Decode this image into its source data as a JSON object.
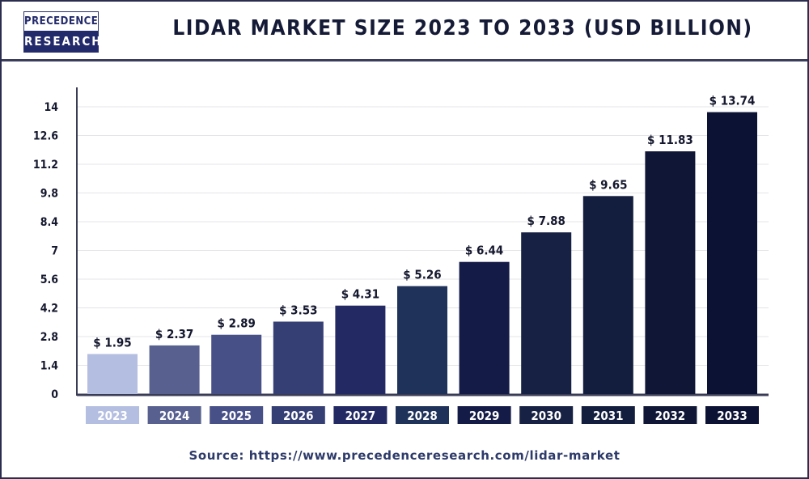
{
  "logo": {
    "line1": "PRECEDENCE",
    "line2": "RESEARCH"
  },
  "title": "LIDAR MARKET SIZE 2023 TO 2033 (USD BILLION)",
  "source": "Source: https://www.precedenceresearch.com/lidar-market",
  "chart_data": {
    "type": "bar",
    "title": "LIDAR MARKET SIZE 2023 TO 2033 (USD BILLION)",
    "categories": [
      "2023",
      "2024",
      "2025",
      "2026",
      "2027",
      "2028",
      "2029",
      "2030",
      "2031",
      "2032",
      "2033"
    ],
    "values": [
      1.95,
      2.37,
      2.89,
      3.53,
      4.31,
      5.26,
      6.44,
      7.88,
      9.65,
      11.83,
      13.74
    ],
    "data_labels": [
      "$ 1.95",
      "$ 2.37",
      "$ 2.89",
      "$ 3.53",
      "$ 4.31",
      "$ 5.26",
      "$ 6.44",
      "$ 7.88",
      "$ 9.65",
      "$ 11.83",
      "$ 13.74"
    ],
    "yticks": [
      "0",
      "1.4",
      "2.8",
      "4.2",
      "5.6",
      "7",
      "8.4",
      "9.8",
      "11.2",
      "12.6",
      "14"
    ],
    "ylim": [
      0,
      14
    ],
    "xlabel": "",
    "ylabel": "",
    "grid": true,
    "colors": [
      "#b4bee0",
      "#57608f",
      "#475087",
      "#363f74",
      "#232a63",
      "#1f3259",
      "#151b47",
      "#172143",
      "#131d3d",
      "#101636",
      "#0c1234"
    ]
  }
}
